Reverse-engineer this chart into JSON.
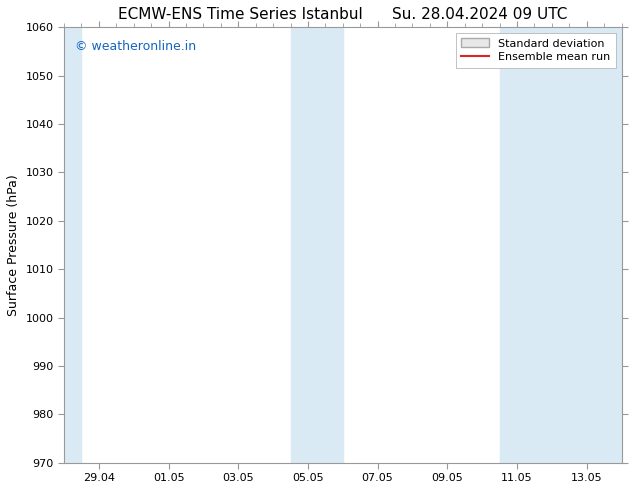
{
  "title_left": "ECMW-ENS Time Series Istanbul",
  "title_right": "Su. 28.04.2024 09 UTC",
  "ylabel": "Surface Pressure (hPa)",
  "ylim": [
    970,
    1060
  ],
  "yticks": [
    970,
    980,
    990,
    1000,
    1010,
    1020,
    1030,
    1040,
    1050,
    1060
  ],
  "xlim": [
    0,
    16
  ],
  "xtick_labels": [
    "29.04",
    "01.05",
    "03.05",
    "05.05",
    "07.05",
    "09.05",
    "11.05",
    "13.05"
  ],
  "xtick_positions": [
    1,
    3,
    5,
    7,
    9,
    11,
    13,
    15
  ],
  "shaded_bands": [
    {
      "xmin": 0.0,
      "xmax": 0.5,
      "color": "#daeaf5"
    },
    {
      "xmin": 6.5,
      "xmax": 7.5,
      "color": "#daeaf5"
    },
    {
      "xmin": 7.5,
      "xmax": 8.0,
      "color": "#daeaf5"
    },
    {
      "xmin": 12.5,
      "xmax": 13.5,
      "color": "#daeaf5"
    },
    {
      "xmin": 13.5,
      "xmax": 16.0,
      "color": "#daeaf5"
    }
  ],
  "watermark_text": "© weatheronline.in",
  "watermark_color": "#1565c0",
  "legend_std_label": "Standard deviation",
  "legend_mean_label": "Ensemble mean run",
  "legend_std_facecolor": "#e8e8e8",
  "legend_std_edgecolor": "#aaaaaa",
  "legend_mean_color": "#dd2222",
  "background_color": "#ffffff",
  "plot_bg_color": "#ffffff",
  "spine_color": "#999999",
  "title_fontsize": 11,
  "ylabel_fontsize": 9,
  "tick_fontsize": 8,
  "watermark_fontsize": 9,
  "legend_fontsize": 8
}
